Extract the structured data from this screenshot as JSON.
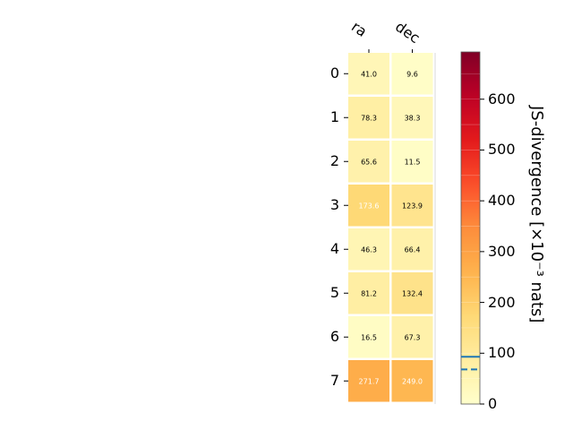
{
  "chart_data": {
    "type": "heatmap",
    "columns": [
      "ra",
      "dec"
    ],
    "rows": [
      "0",
      "1",
      "2",
      "3",
      "4",
      "5",
      "6",
      "7"
    ],
    "values": [
      [
        41.0,
        9.6
      ],
      [
        78.3,
        38.3
      ],
      [
        65.6,
        11.5
      ],
      [
        173.6,
        123.9
      ],
      [
        46.3,
        66.4
      ],
      [
        81.2,
        132.4
      ],
      [
        16.5,
        67.3
      ],
      [
        271.7,
        249.0
      ]
    ],
    "cell_labels": [
      [
        "41.0",
        "9.6"
      ],
      [
        "78.3",
        "38.3"
      ],
      [
        "65.6",
        "11.5"
      ],
      [
        "173.6",
        "123.9"
      ],
      [
        "46.3",
        "66.4"
      ],
      [
        "81.2",
        "132.4"
      ],
      [
        "16.5",
        "67.3"
      ],
      [
        "271.7",
        "249.0"
      ]
    ],
    "colorbar": {
      "label": "JS-divergence [×10⁻³ nats]",
      "range": [
        0,
        693
      ],
      "ticks": [
        "0",
        "100",
        "200",
        "300",
        "400",
        "500",
        "600"
      ],
      "colormap": "YlOrRd",
      "reference_lines": [
        {
          "value": 93,
          "style": "solid",
          "color": "#1f77b4"
        },
        {
          "value": 68,
          "style": "dashed",
          "color": "#1f77b4"
        }
      ]
    }
  }
}
